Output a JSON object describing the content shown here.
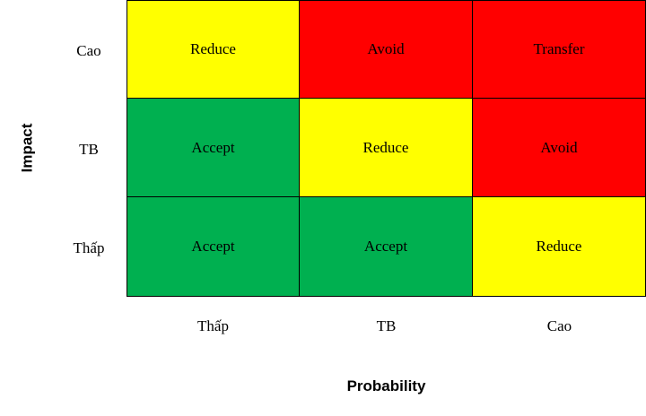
{
  "axes": {
    "y_title": "Impact",
    "x_title": "Probability",
    "y_labels": [
      "Cao",
      "TB",
      "Thấp"
    ],
    "x_labels": [
      "Thấp",
      "TB",
      "Cao"
    ]
  },
  "colors": {
    "yellow": "#ffff00",
    "red": "#ff0000",
    "green": "#00b050"
  },
  "matrix": [
    [
      {
        "label": "Reduce",
        "color": "yellow"
      },
      {
        "label": "Avoid",
        "color": "red"
      },
      {
        "label": "Transfer",
        "color": "red"
      }
    ],
    [
      {
        "label": "Accept",
        "color": "green"
      },
      {
        "label": "Reduce",
        "color": "yellow"
      },
      {
        "label": "Avoid",
        "color": "red"
      }
    ],
    [
      {
        "label": "Accept",
        "color": "green"
      },
      {
        "label": "Accept",
        "color": "green"
      },
      {
        "label": "Reduce",
        "color": "yellow"
      }
    ]
  ]
}
